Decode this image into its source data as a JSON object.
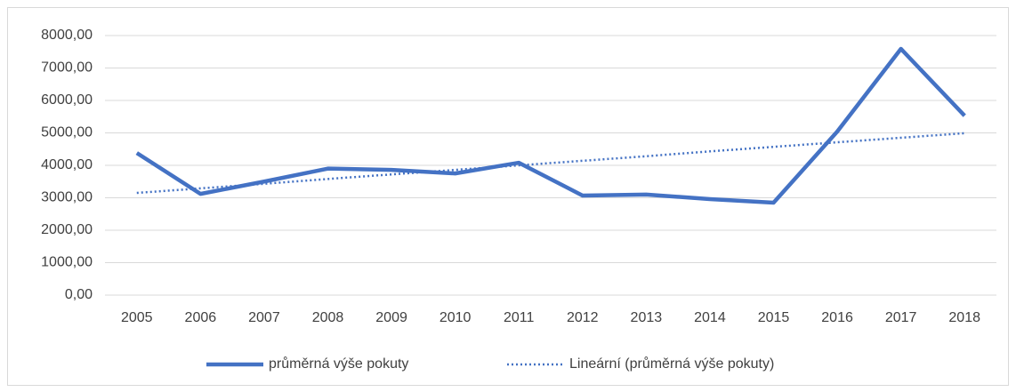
{
  "chart_data": {
    "type": "line",
    "categories": [
      "2005",
      "2006",
      "2007",
      "2008",
      "2009",
      "2010",
      "2011",
      "2012",
      "2013",
      "2014",
      "2015",
      "2016",
      "2017",
      "2018"
    ],
    "series": [
      {
        "name": "průměrná výše pokuty",
        "color": "#4472c4",
        "values": [
          4380,
          3120,
          3500,
          3900,
          3860,
          3750,
          4080,
          3070,
          3100,
          2960,
          2850,
          5040,
          7590,
          5530
        ]
      },
      {
        "name": "Lineární (průměrná výše pokuty)",
        "color": "#4472c4",
        "dotted": true,
        "values": [
          3150,
          3290,
          3430,
          3580,
          3720,
          3860,
          4000,
          4140,
          4280,
          4430,
          4570,
          4710,
          4850,
          4990
        ]
      }
    ],
    "ylim": [
      0,
      8000
    ],
    "yticks": [
      {
        "value": 0,
        "label": "0,00"
      },
      {
        "value": 1000,
        "label": "1000,00"
      },
      {
        "value": 2000,
        "label": "2000,00"
      },
      {
        "value": 3000,
        "label": "3000,00"
      },
      {
        "value": 4000,
        "label": "4000,00"
      },
      {
        "value": 5000,
        "label": "5000,00"
      },
      {
        "value": 6000,
        "label": "6000,00"
      },
      {
        "value": 7000,
        "label": "7000,00"
      },
      {
        "value": 8000,
        "label": "8000,00"
      }
    ],
    "grid": true,
    "legend": "bottom"
  }
}
